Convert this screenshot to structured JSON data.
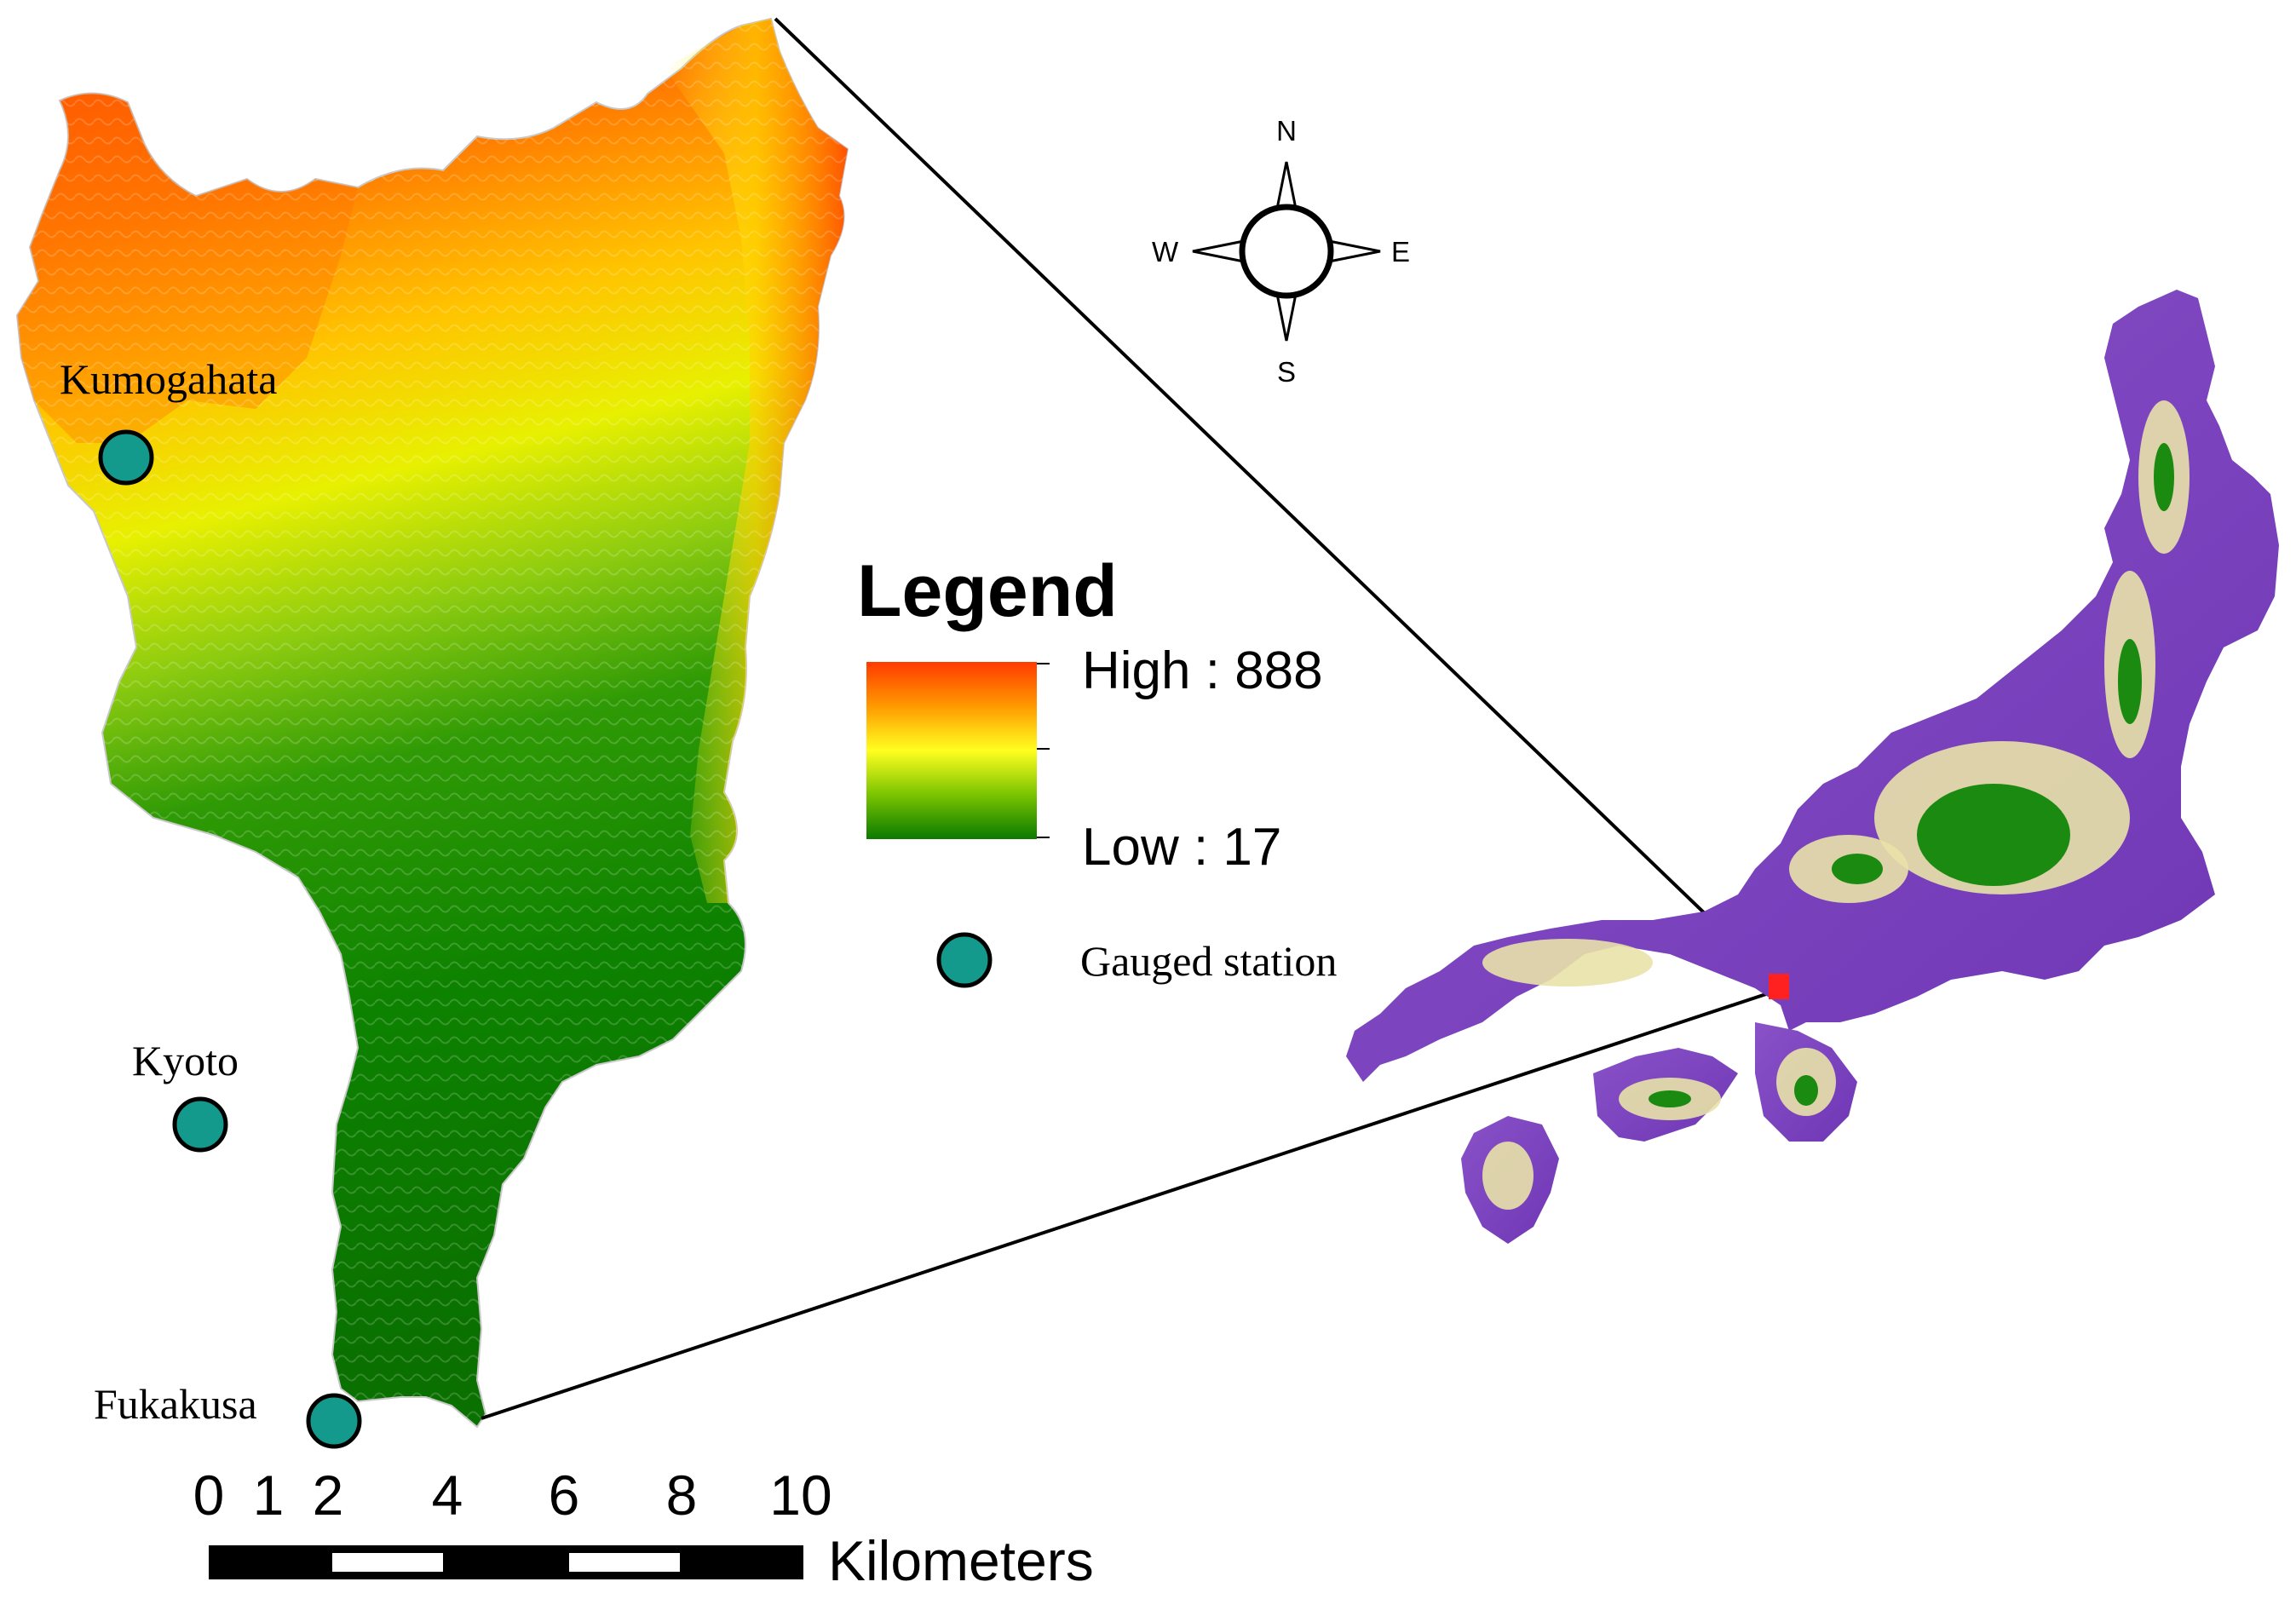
{
  "map": {
    "stations": [
      {
        "name": "Kumogahata"
      },
      {
        "name": "Kyoto"
      },
      {
        "name": "Fukakusa"
      }
    ],
    "legend": {
      "title": "Legend",
      "high_label": "High : 888",
      "low_label": "Low : 17",
      "station_label": "Gauged station",
      "colors": [
        "#ff3a00",
        "#ff9a00",
        "#ffff20",
        "#7ac400",
        "#0a7a00"
      ]
    },
    "compass": {
      "n": "N",
      "s": "S",
      "e": "E",
      "w": "W"
    },
    "scale_bar": {
      "ticks": [
        "0",
        "1",
        "2",
        "4",
        "6",
        "8",
        "10"
      ],
      "unit": "Kilometers"
    },
    "inset": {
      "colors": [
        "#7a3dbd",
        "#e8e2a8",
        "#1a8a10"
      ],
      "study_area_color": "#ff2020"
    },
    "station_color": "#139a8c"
  }
}
